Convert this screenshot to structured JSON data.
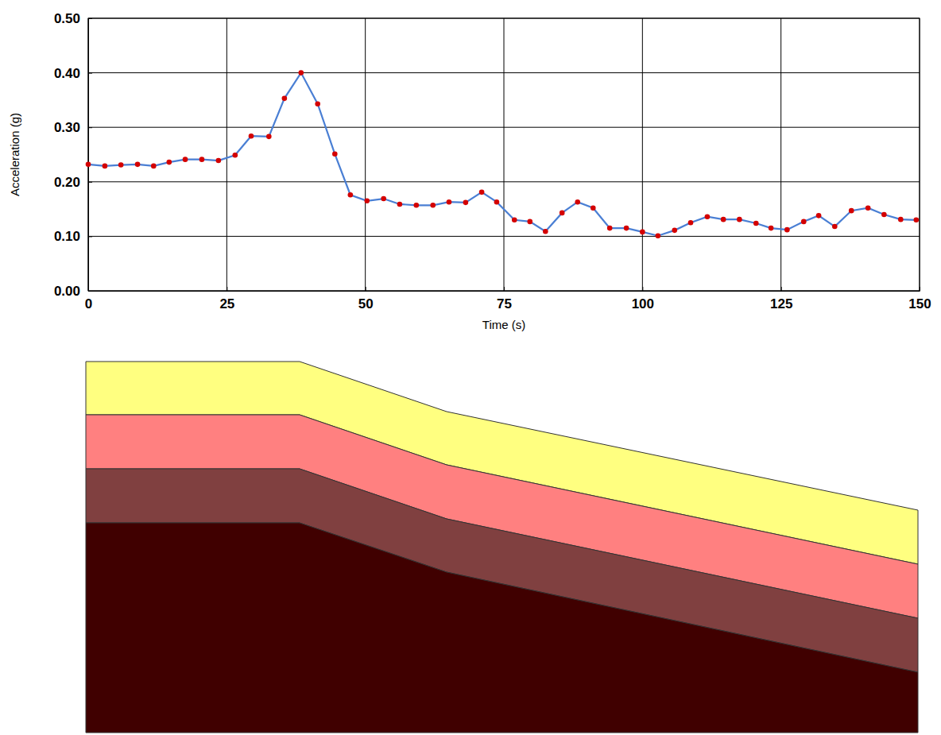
{
  "chart_data": {
    "type": "line",
    "x_label": "Time (s)",
    "y_label": "Acceleration (g)",
    "x": [
      0,
      3,
      5.9,
      8.9,
      11.8,
      14.6,
      17.5,
      20.5,
      23.5,
      26.5,
      29.4,
      32.6,
      35.4,
      38.4,
      41.4,
      44.5,
      47.3,
      50.3,
      53.3,
      56.2,
      59.2,
      62.2,
      65.1,
      68.1,
      71,
      73.7,
      76.9,
      79.7,
      82.5,
      85.5,
      88.3,
      91.1,
      94.1,
      97.1,
      100,
      102.8,
      105.8,
      108.7,
      111.7,
      114.6,
      117.5,
      120.5,
      123.2,
      126.1,
      129.1,
      131.8,
      134.7,
      137.7,
      140.7,
      143.6,
      146.6,
      149.4
    ],
    "values": [
      0.232,
      0.229,
      0.231,
      0.232,
      0.229,
      0.236,
      0.241,
      0.241,
      0.239,
      0.249,
      0.284,
      0.283,
      0.353,
      0.4,
      0.343,
      0.251,
      0.176,
      0.165,
      0.169,
      0.159,
      0.157,
      0.157,
      0.163,
      0.162,
      0.181,
      0.163,
      0.13,
      0.127,
      0.109,
      0.143,
      0.163,
      0.152,
      0.115,
      0.115,
      0.108,
      0.101,
      0.111,
      0.125,
      0.136,
      0.131,
      0.131,
      0.124,
      0.115,
      0.112,
      0.127,
      0.138,
      0.118,
      0.147,
      0.152,
      0.14,
      0.131,
      0.13
    ],
    "color": "#4a7fd4",
    "marker": "circle",
    "xlim": [
      0,
      150
    ],
    "ylim": [
      0,
      0.5
    ],
    "xticks": [
      0,
      25,
      50,
      75,
      100,
      125,
      150
    ],
    "yticks": [
      {
        "value": 0,
        "label": "0.00"
      },
      {
        "value": 0.1,
        "label": "0.10"
      },
      {
        "value": 0.2,
        "label": "0.20"
      },
      {
        "value": 0.3,
        "label": "0.30"
      },
      {
        "value": 0.4,
        "label": "0.40"
      },
      {
        "value": 0.5,
        "label": "0.50"
      }
    ],
    "grid": true
  }
}
